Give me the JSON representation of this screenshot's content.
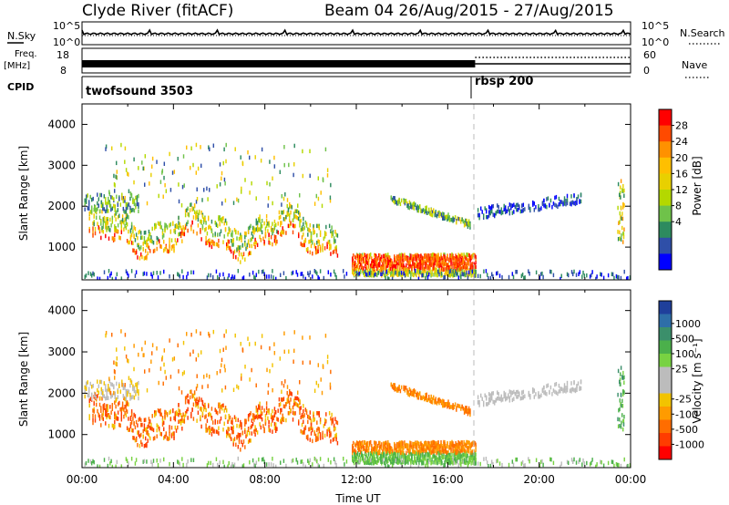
{
  "header": {
    "title_left": "Clyde River (fitACF)",
    "title_right": "Beam 04 26/Aug/2015 - 27/Aug/2015"
  },
  "left_labels": {
    "nsky": "N.Sky",
    "freq": "Freq.",
    "freq_unit": "[MHz]",
    "cpid": "CPID"
  },
  "right_labels": {
    "nsearch": "N.Search",
    "nave": "Nave"
  },
  "cpid_segments": [
    "twofsound 3503",
    "rbsp 200"
  ],
  "chart_data": [
    {
      "name": "noise",
      "type": "line",
      "left_axis": {
        "ticks": [
          "10^5",
          "10^0"
        ]
      },
      "right_axis": {
        "ticks": [
          "10^5",
          "10^0"
        ]
      },
      "series": [
        {
          "name": "N.Sky",
          "style": "solid",
          "level": 0.78
        },
        {
          "name": "N.Search",
          "style": "dotted",
          "level": 0.7
        }
      ]
    },
    {
      "name": "frequency-nave",
      "type": "line",
      "left_axis": {
        "ticks": [
          "18",
          "8"
        ]
      },
      "right_axis": {
        "ticks": [
          "60",
          "0"
        ]
      },
      "series": [
        {
          "name": "Freq",
          "style": "banded",
          "until_hour": 17.2
        },
        {
          "name": "Nave",
          "style": "dotted",
          "from_hour": 17.2
        }
      ]
    },
    {
      "name": "power",
      "type": "heatmap",
      "ylabel": "Slant Range [km]",
      "ylim": [
        200,
        4500
      ],
      "yticks": [
        1000,
        2000,
        3000,
        4000
      ],
      "colorbar": {
        "label": "Power [dB]",
        "ticks": [
          "28",
          "24",
          "20",
          "16",
          "12",
          "8",
          "4"
        ],
        "colors": [
          "#ff0000",
          "#ff4a00",
          "#ff9100",
          "#ffbf00",
          "#e8d000",
          "#b4d800",
          "#6fc24a",
          "#2d8b5f",
          "#2f4fa8",
          "#0000ff"
        ]
      }
    },
    {
      "name": "velocity",
      "type": "heatmap",
      "ylabel": "Slant Range [km]",
      "ylim": [
        200,
        4500
      ],
      "yticks": [
        1000,
        2000,
        3000,
        4000
      ],
      "xlabel": "Time UT",
      "xticks": [
        "00:00",
        "04:00",
        "08:00",
        "12:00",
        "16:00",
        "20:00",
        "00:00"
      ],
      "colorbar": {
        "label": "Velocity [m s⁻¹]",
        "ticks": [
          "1000",
          "500",
          "100",
          "25",
          "-25",
          "-100",
          "-500",
          "-1000"
        ],
        "colors": [
          "#1f3f9b",
          "#2e6ea8",
          "#3b8f6b",
          "#4bb04b",
          "#78d242",
          "#bcbcbc",
          "#bcbcbc",
          "#f2c300",
          "#ff9b00",
          "#ff6d00",
          "#ff3c00",
          "#ff0000"
        ]
      }
    }
  ]
}
